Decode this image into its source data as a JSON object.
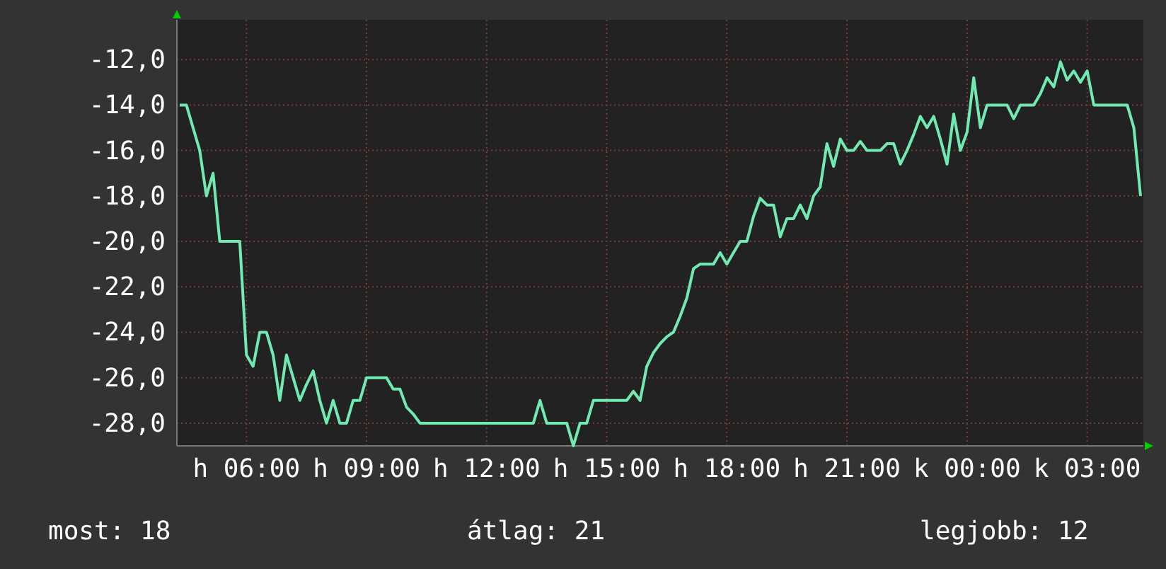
{
  "chart_data": {
    "type": "line",
    "categories": [
      null,
      null,
      null,
      null,
      null,
      null,
      null,
      null,
      null,
      null,
      "h 06:00",
      null,
      null,
      null,
      null,
      null,
      null,
      null,
      null,
      null,
      null,
      null,
      null,
      null,
      null,
      null,
      null,
      null,
      "h 09:00",
      null,
      null,
      null,
      null,
      null,
      null,
      null,
      null,
      null,
      null,
      null,
      null,
      null,
      null,
      null,
      null,
      null,
      "h 12:00",
      null,
      null,
      null,
      null,
      null,
      null,
      null,
      null,
      null,
      null,
      null,
      null,
      null,
      null,
      null,
      null,
      null,
      "h 15:00",
      null,
      null,
      null,
      null,
      null,
      null,
      null,
      null,
      null,
      null,
      null,
      null,
      null,
      null,
      null,
      null,
      null,
      "h 18:00",
      null,
      null,
      null,
      null,
      null,
      null,
      null,
      null,
      null,
      null,
      null,
      null,
      null,
      null,
      null,
      null,
      null,
      "h 21:00",
      null,
      null,
      null,
      null,
      null,
      null,
      null,
      null,
      null,
      null,
      null,
      null,
      null,
      null,
      null,
      null,
      null,
      "k 00:00",
      null,
      null,
      null,
      null,
      null,
      null,
      null,
      null,
      null,
      null,
      null,
      null,
      null,
      null,
      null,
      null,
      null,
      "k 03:00",
      null,
      null,
      null,
      null,
      null,
      null,
      null,
      null
    ],
    "series": [
      {
        "color": "#70eab0",
        "values": [
          -14,
          -14,
          -15,
          -16,
          -18,
          -17,
          -20,
          -20,
          -20,
          -20,
          -25,
          -25.5,
          -24,
          -24,
          -25,
          -27,
          -25,
          -26,
          -27,
          -26.3,
          -25.7,
          -27,
          -28,
          -27,
          -28,
          -28,
          -27,
          -27,
          -26,
          -26,
          -26,
          -26,
          -26.5,
          -26.5,
          -27.3,
          -27.6,
          -28,
          -28,
          -28,
          -28,
          -28,
          -28,
          -28,
          -28,
          -28,
          -28,
          -28,
          -28,
          -28,
          -28,
          -28,
          -28,
          -28,
          -28,
          -27,
          -28,
          -28,
          -28,
          -28,
          -29,
          -28,
          -28,
          -27,
          -27,
          -27,
          -27,
          -27,
          -27,
          -26.6,
          -27,
          -25.5,
          -24.9,
          -24.5,
          -24.2,
          -24,
          -23.3,
          -22.5,
          -21.2,
          -21,
          -21,
          -21,
          -20.5,
          -21,
          -20.5,
          -20,
          -20,
          -18.9,
          -18.1,
          -18.4,
          -18.4,
          -19.8,
          -19,
          -19,
          -18.4,
          -19,
          -18,
          -17.6,
          -15.7,
          -16.7,
          -15.5,
          -16,
          -16,
          -15.6,
          -16,
          -16,
          -16,
          -15.7,
          -15.7,
          -16.6,
          -16,
          -15.3,
          -14.5,
          -15,
          -14.5,
          -15.5,
          -16.6,
          -14.4,
          -16,
          -15.2,
          -12.8,
          -15,
          -14,
          -14,
          -14,
          -14,
          -14.6,
          -14,
          -14,
          -14,
          -13.5,
          -12.8,
          -13.2,
          -12.1,
          -12.9,
          -12.5,
          -13,
          -12.5,
          -14,
          -14,
          -14,
          -14,
          -14,
          -14,
          -15,
          -18
        ]
      }
    ],
    "ylim": [
      -29,
      -10.25
    ],
    "yticks": [
      {
        "value": -28,
        "label": "-28,0"
      },
      {
        "value": -26,
        "label": "-26,0"
      },
      {
        "value": -24,
        "label": "-24,0"
      },
      {
        "value": -22,
        "label": "-22,0"
      },
      {
        "value": -20,
        "label": "-20,0"
      },
      {
        "value": -18,
        "label": "-18,0"
      },
      {
        "value": -16,
        "label": "-16,0"
      },
      {
        "value": -14,
        "label": "-14,0"
      },
      {
        "value": -12,
        "label": "-12,0"
      }
    ],
    "grid": true,
    "annotations": [
      "most: 18",
      "átlag: 21",
      "legjobb: 12"
    ]
  }
}
